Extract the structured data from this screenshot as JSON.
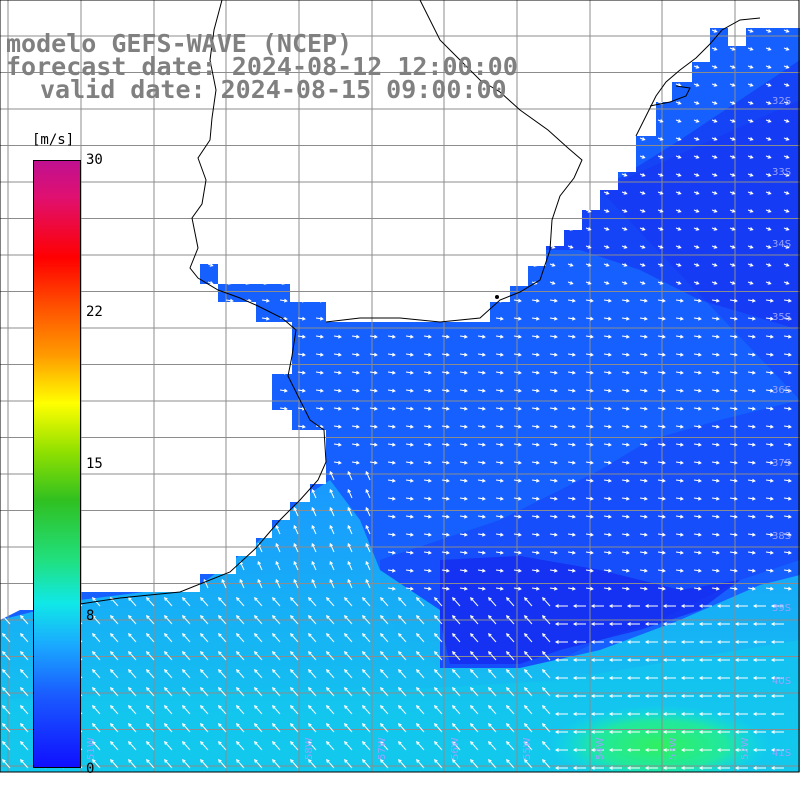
{
  "title": {
    "line1": "modelo GEFS-WAVE (NCEP)",
    "line2": "forecast date: 2024-08-12 12:00:00",
    "line3": "valid date: 2024-08-15 09:00:00"
  },
  "colorbar": {
    "unit": "[m/s]",
    "ticks": [
      "30",
      "22",
      "15",
      "8",
      "0"
    ],
    "tick_values": [
      30,
      22,
      15,
      8,
      0
    ],
    "min": 0,
    "max": 30
  },
  "lat_labels": [
    "32S",
    "33S",
    "34S",
    "35S",
    "36S",
    "37S",
    "38S",
    "39S",
    "40S",
    "41S"
  ],
  "lon_labels": [
    "58W",
    "57W",
    "56W",
    "55W",
    "54W",
    "53W",
    "52W",
    "51W"
  ],
  "colors": {
    "land": "#ffffff",
    "deep_blue": "#1530f0",
    "mid_blue": "#1560ff",
    "light_blue": "#1a9fff",
    "cyan": "#10e0e0",
    "green": "#20e060",
    "grid": "#8c8c8c",
    "arrow": "#ffffff"
  }
}
